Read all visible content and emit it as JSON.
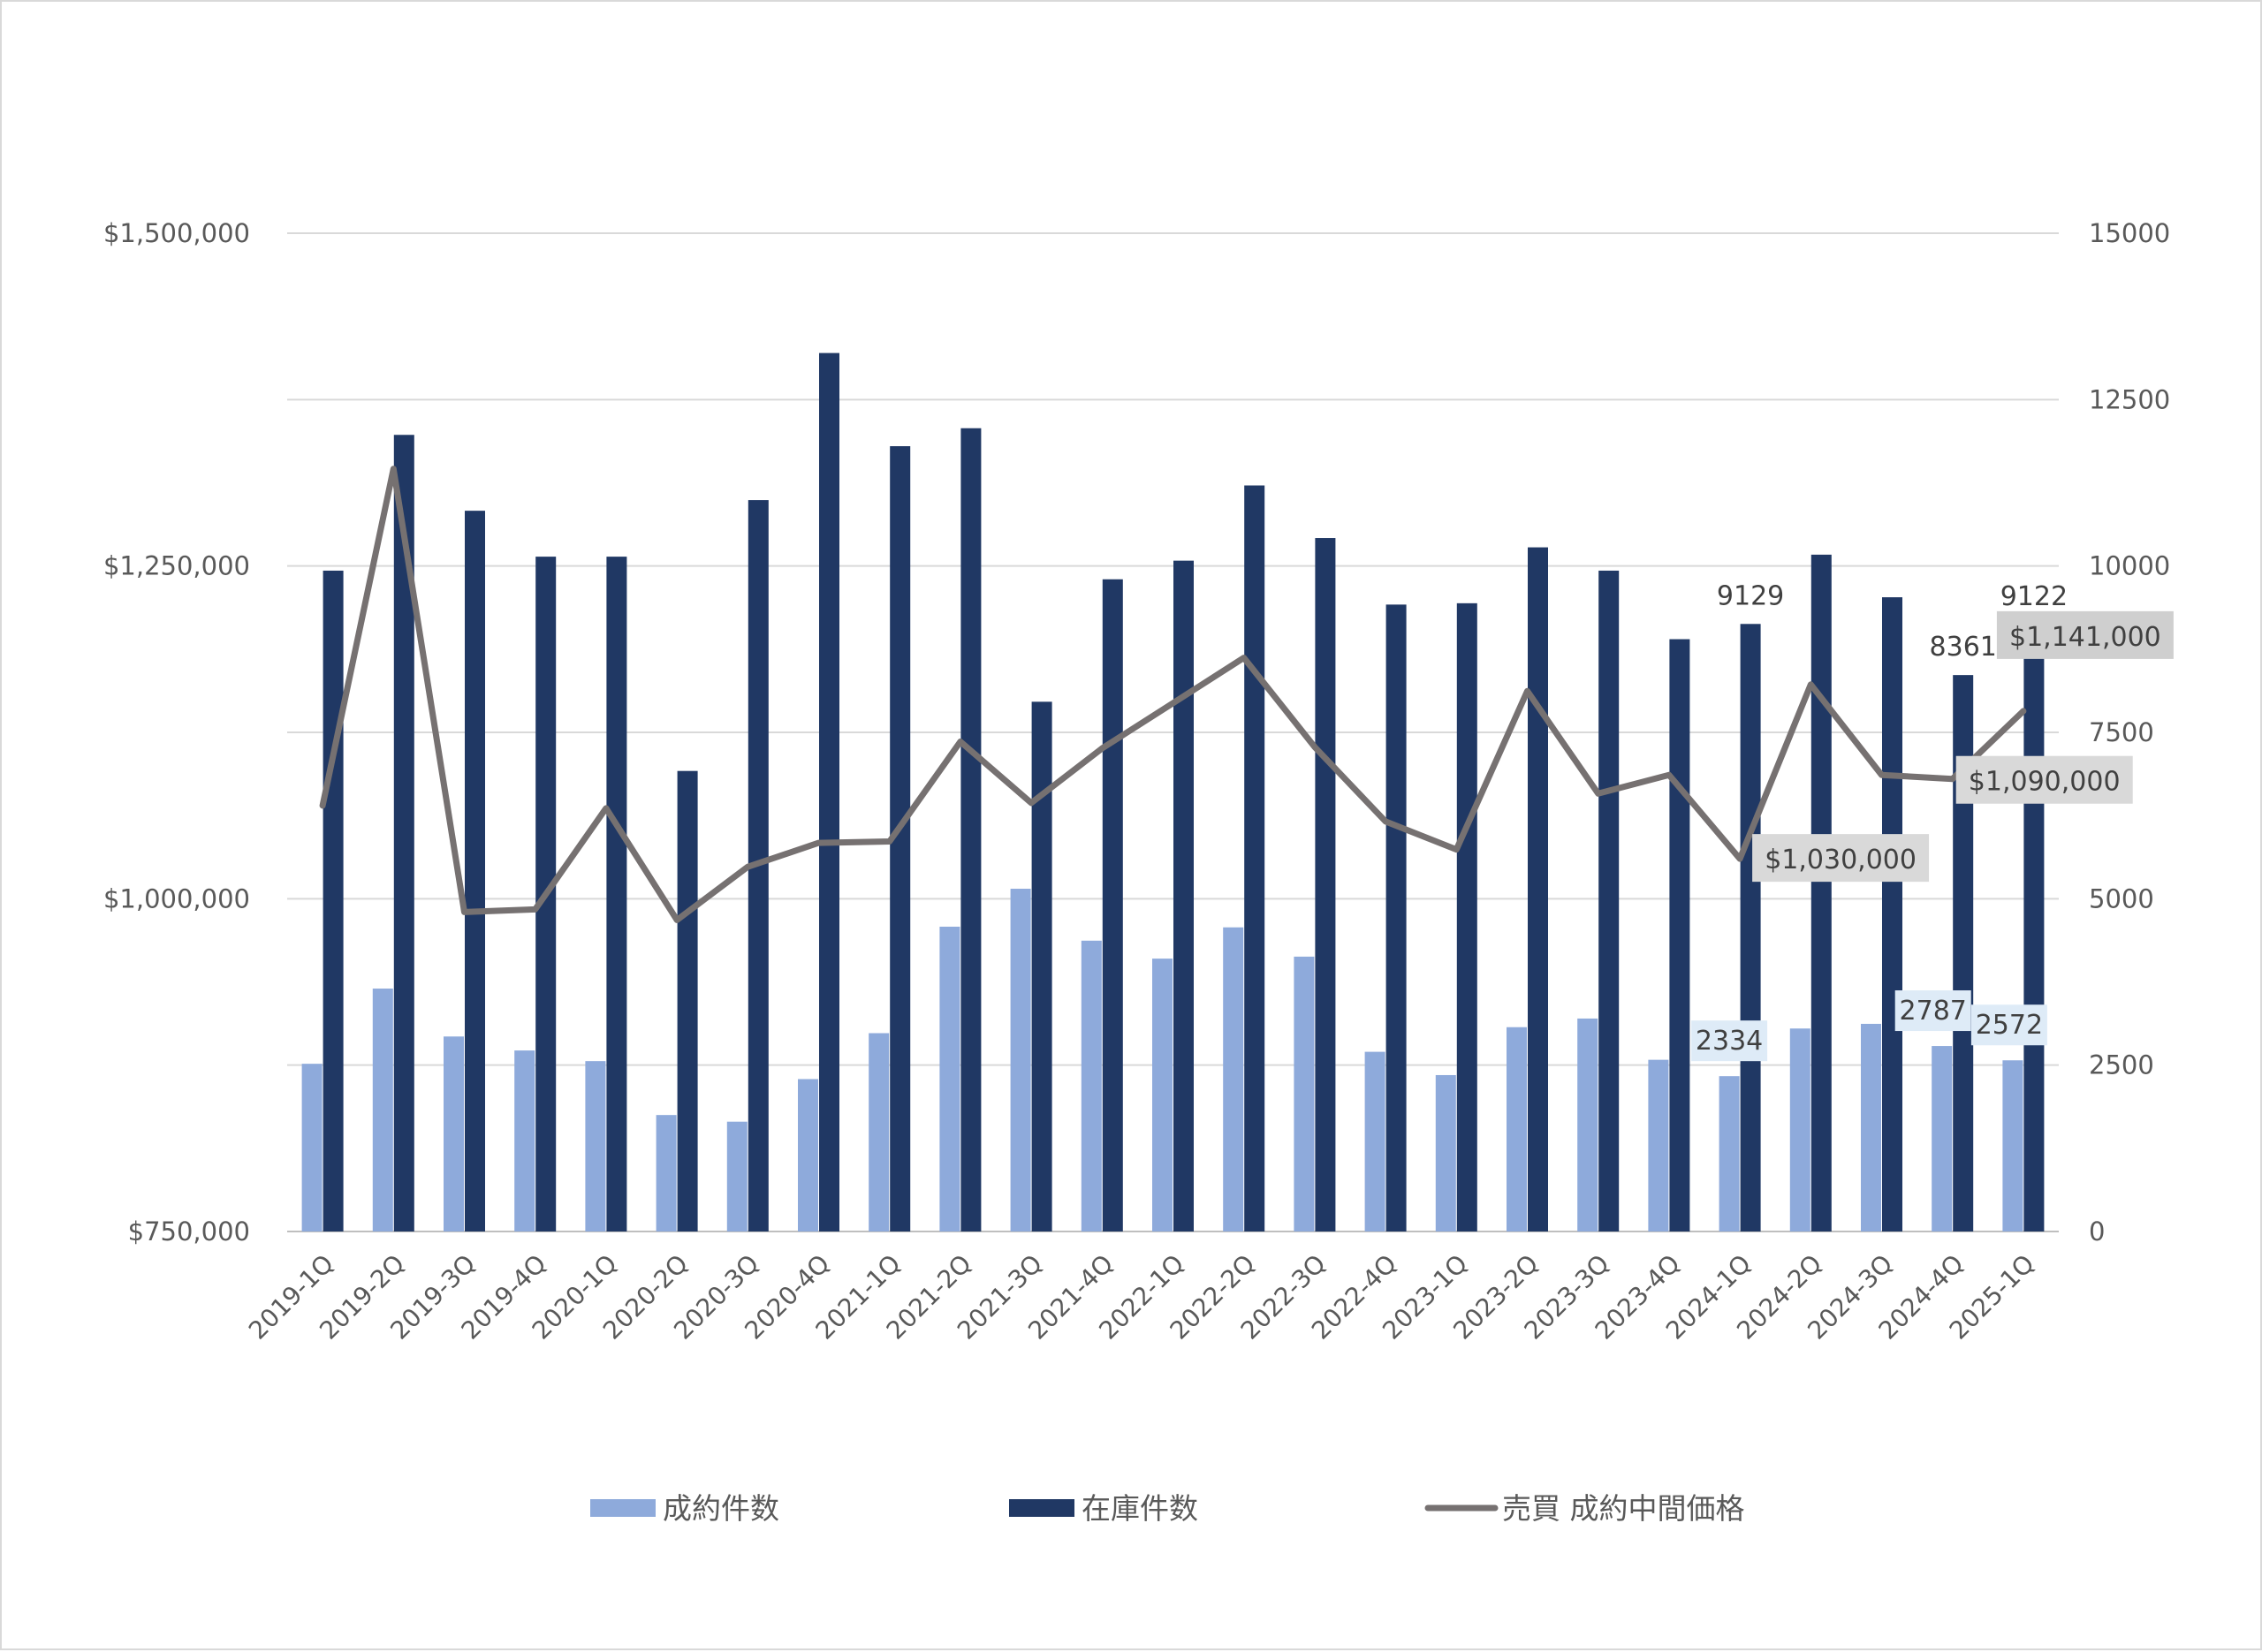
{
  "chart_data": {
    "type": "bar",
    "categories": [
      "2019-1Q",
      "2019-2Q",
      "2019-3Q",
      "2019-4Q",
      "2020-1Q",
      "2020-2Q",
      "2020-3Q",
      "2020-4Q",
      "2021-1Q",
      "2021-2Q",
      "2021-3Q",
      "2021-4Q",
      "2022-1Q",
      "2022-2Q",
      "2022-3Q",
      "2022-4Q",
      "2023-1Q",
      "2023-2Q",
      "2023-3Q",
      "2023-4Q",
      "2024-1Q",
      "2024-2Q",
      "2024-3Q",
      "2024-4Q",
      "2025-1Q"
    ],
    "series": [
      {
        "name": "成約件数",
        "type": "bar",
        "axis": "right",
        "color": "#8eaadb",
        "values": [
          2520,
          3650,
          2930,
          2720,
          2560,
          1750,
          1650,
          2290,
          2980,
          4580,
          5150,
          4370,
          4100,
          4570,
          4130,
          2700,
          2350,
          3070,
          3200,
          2580,
          2334,
          3050,
          3120,
          2787,
          2572
        ]
      },
      {
        "name": "在庫件数",
        "type": "bar",
        "axis": "right",
        "color": "#203864",
        "values": [
          9930,
          11970,
          10830,
          10140,
          10140,
          6920,
          10990,
          13200,
          11800,
          12070,
          7960,
          9800,
          10080,
          11210,
          10420,
          9420,
          9440,
          10280,
          9930,
          8900,
          9129,
          10170,
          9530,
          8361,
          9122
        ]
      },
      {
        "name": "売買 成約中間価格",
        "type": "line",
        "axis": "left",
        "color": "#767171",
        "values": [
          1070000,
          1323000,
          990000,
          992000,
          1068000,
          984000,
          1024000,
          1042000,
          1043000,
          1118000,
          1072000,
          1113000,
          1147000,
          1181000,
          1114000,
          1058000,
          1037000,
          1156000,
          1079000,
          1093000,
          1030000,
          1161000,
          1093000,
          1090000,
          1141000
        ]
      }
    ],
    "y_left": {
      "min": 750000,
      "max": 1500000,
      "ticks": [
        "$750,000",
        "$1,000,000",
        "$1,250,000",
        "$1,500,000"
      ]
    },
    "y_right": {
      "min": 0,
      "max": 15000,
      "ticks": [
        "0",
        "2500",
        "5000",
        "7500",
        "10000",
        "12500",
        "15000"
      ]
    },
    "data_labels": [
      {
        "text": "9129"
      },
      {
        "text": "8361"
      },
      {
        "text": "9122"
      },
      {
        "text": "2334"
      },
      {
        "text": "2787"
      },
      {
        "text": "2572"
      },
      {
        "text": "$1,030,000"
      },
      {
        "text": "$1,090,000"
      },
      {
        "text": "$1,141,000"
      }
    ],
    "legend": [
      "成約件数",
      "在庫件数",
      "売買 成約中間価格"
    ],
    "legend_position": "bottom",
    "grid": true
  }
}
